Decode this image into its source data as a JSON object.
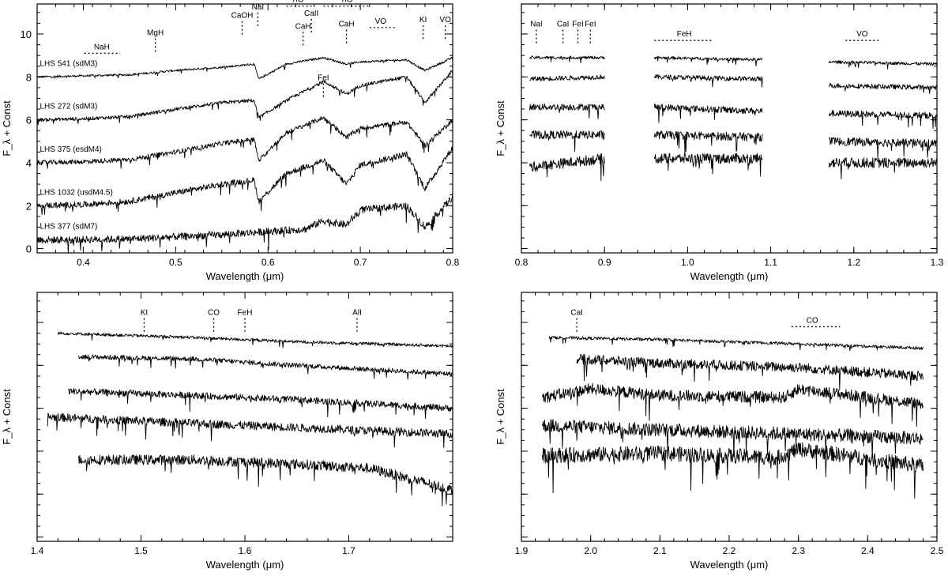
{
  "chart_data": [
    {
      "type": "line",
      "xlabel": "Wavelength (μm)",
      "ylabel": "F_λ + Const",
      "xlim": [
        0.35,
        0.8
      ],
      "ylim": [
        -0.2,
        11.4
      ],
      "xticks": [
        0.4,
        0.5,
        0.6,
        0.7,
        0.8
      ],
      "yticks": [
        0,
        2,
        4,
        6,
        8,
        10
      ],
      "series": [
        {
          "name": "LHS 541 (sdM3)",
          "offset": 8.0,
          "x": [
            0.35,
            0.4,
            0.45,
            0.5,
            0.55,
            0.585,
            0.59,
            0.62,
            0.66,
            0.685,
            0.7,
            0.75,
            0.77,
            0.8
          ],
          "y": [
            8.0,
            8.05,
            8.1,
            8.3,
            8.45,
            8.6,
            7.9,
            8.6,
            8.9,
            8.6,
            8.7,
            8.8,
            8.3,
            8.9
          ]
        },
        {
          "name": "LHS 272 (sdM3)",
          "offset": 6.0,
          "x": [
            0.35,
            0.4,
            0.45,
            0.5,
            0.55,
            0.585,
            0.59,
            0.62,
            0.66,
            0.685,
            0.7,
            0.75,
            0.77,
            0.8
          ],
          "y": [
            6.0,
            6.05,
            6.15,
            6.5,
            6.8,
            6.9,
            6.1,
            6.9,
            7.8,
            7.2,
            7.6,
            8.0,
            6.8,
            8.3
          ]
        },
        {
          "name": "LHS 375 (esdM4)",
          "offset": 4.0,
          "x": [
            0.35,
            0.4,
            0.45,
            0.5,
            0.55,
            0.585,
            0.59,
            0.62,
            0.66,
            0.685,
            0.7,
            0.75,
            0.77,
            0.8
          ],
          "y": [
            4.0,
            4.05,
            4.15,
            4.5,
            4.9,
            5.1,
            4.1,
            5.4,
            6.1,
            5.2,
            5.6,
            5.9,
            4.8,
            6.0
          ]
        },
        {
          "name": "LHS 1032 (usdM4.5)",
          "offset": 2.0,
          "x": [
            0.35,
            0.4,
            0.45,
            0.5,
            0.55,
            0.585,
            0.59,
            0.62,
            0.66,
            0.685,
            0.7,
            0.75,
            0.77,
            0.8
          ],
          "y": [
            2.0,
            2.05,
            2.2,
            2.6,
            3.0,
            3.2,
            2.2,
            3.5,
            4.1,
            3.0,
            3.9,
            4.4,
            2.8,
            4.7
          ]
        },
        {
          "name": "LHS 377 (sdM7)",
          "offset": 0.4,
          "x": [
            0.35,
            0.4,
            0.45,
            0.5,
            0.55,
            0.6,
            0.64,
            0.66,
            0.685,
            0.7,
            0.75,
            0.77,
            0.8
          ],
          "y": [
            0.4,
            0.42,
            0.45,
            0.55,
            0.65,
            0.8,
            0.9,
            1.3,
            1.1,
            1.8,
            2.0,
            1.0,
            2.4
          ]
        }
      ],
      "annotations": [
        {
          "text": "NaH",
          "x": 0.42,
          "level": 9.1,
          "x1": 0.401,
          "x2": 0.44
        },
        {
          "text": "MgH",
          "x": 0.478,
          "level": 9.8
        },
        {
          "text": "CaOH",
          "x": 0.572,
          "level": 10.6
        },
        {
          "text": "NaI",
          "x": 0.589,
          "level": 11.0
        },
        {
          "text": "TiO",
          "x": 0.632,
          "level": 11.3,
          "x1": 0.62,
          "x2": 0.65
        },
        {
          "text": "CaII",
          "x": 0.647,
          "level": 10.7
        },
        {
          "text": "CaH",
          "x": 0.638,
          "level": 10.1
        },
        {
          "text": "TiO",
          "x": 0.685,
          "level": 11.3,
          "x1": 0.66,
          "x2": 0.71
        },
        {
          "text": "CaH",
          "x": 0.685,
          "level": 10.2
        },
        {
          "text": "VO",
          "x": 0.722,
          "level": 10.3,
          "x1": 0.71,
          "x2": 0.74
        },
        {
          "text": "KI",
          "x": 0.768,
          "level": 10.4
        },
        {
          "text": "VO",
          "x": 0.792,
          "level": 10.4
        },
        {
          "text": "FeI",
          "x": 0.66,
          "level": 7.7
        }
      ]
    },
    {
      "type": "line",
      "xlabel": "Wavelength (μm)",
      "ylabel": "F_λ + Const",
      "xlim": [
        0.8,
        1.3
      ],
      "xticks": [
        0.8,
        0.9,
        1.0,
        1.1,
        1.2,
        1.3
      ],
      "segments": [
        [
          0.81,
          0.9
        ],
        [
          0.96,
          1.09
        ],
        [
          1.17,
          1.3
        ]
      ],
      "series": [
        {
          "name": "LHS 541 (sdM3)",
          "offset": 8.9,
          "x": [
            0.81,
            0.9,
            0.96,
            1.09,
            1.17,
            1.3
          ],
          "y": [
            8.9,
            8.9,
            8.9,
            8.8,
            8.7,
            8.6
          ]
        },
        {
          "name": "LHS 272 (sdM3)",
          "offset": 7.9,
          "x": [
            0.81,
            0.9,
            0.96,
            1.09,
            1.17,
            1.3
          ],
          "y": [
            7.9,
            8.0,
            8.0,
            7.9,
            7.6,
            7.5
          ]
        },
        {
          "name": "LHS 375 (esdM4)",
          "offset": 6.6,
          "x": [
            0.81,
            0.9,
            0.96,
            1.09,
            1.17,
            1.3
          ],
          "y": [
            6.6,
            6.6,
            6.6,
            6.4,
            6.3,
            6.2
          ]
        },
        {
          "name": "LHS 1032 (usdM4.5)",
          "offset": 5.3,
          "x": [
            0.81,
            0.9,
            0.96,
            1.09,
            1.17,
            1.3
          ],
          "y": [
            5.3,
            5.3,
            5.3,
            5.2,
            5.0,
            4.9
          ]
        },
        {
          "name": "LHS 377 (sdM7)",
          "offset": 4.2,
          "x": [
            0.81,
            0.9,
            0.96,
            1.09,
            1.17,
            1.3
          ],
          "y": [
            3.8,
            4.2,
            4.2,
            4.2,
            4.0,
            4.0
          ]
        }
      ],
      "annotations": [
        {
          "text": "NaI",
          "x": 0.818,
          "level": 10.2
        },
        {
          "text": "CaI",
          "x": 0.85,
          "level": 10.2
        },
        {
          "text": "FeI",
          "x": 0.868,
          "level": 10.2
        },
        {
          "text": "FeI",
          "x": 0.883,
          "level": 10.2
        },
        {
          "text": "FeH",
          "x": 0.996,
          "level": 9.7,
          "x1": 0.96,
          "x2": 1.03
        },
        {
          "text": "VO",
          "x": 1.21,
          "level": 9.7,
          "x1": 1.19,
          "x2": 1.23
        }
      ]
    },
    {
      "type": "line",
      "xlabel": "Wavelength (μm)",
      "ylabel": "F_λ + Const",
      "xlim": [
        1.4,
        1.8
      ],
      "xticks": [
        1.4,
        1.5,
        1.6,
        1.7
      ],
      "series": [
        {
          "name": "LHS 541 (sdM3)",
          "offset": 9.5,
          "x": [
            1.42,
            1.55,
            1.65,
            1.8
          ],
          "y": [
            9.5,
            9.3,
            9.1,
            8.9
          ]
        },
        {
          "name": "LHS 272 (sdM3)",
          "offset": 8.4,
          "x": [
            1.44,
            1.55,
            1.65,
            1.8
          ],
          "y": [
            8.4,
            8.3,
            8.0,
            7.6
          ]
        },
        {
          "name": "LHS 375 (esdM4)",
          "offset": 6.8,
          "x": [
            1.43,
            1.55,
            1.65,
            1.8
          ],
          "y": [
            6.8,
            6.6,
            6.4,
            6.0
          ]
        },
        {
          "name": "LHS 1032 (usdM4.5)",
          "offset": 5.6,
          "x": [
            1.41,
            1.55,
            1.65,
            1.8
          ],
          "y": [
            5.6,
            5.3,
            5.1,
            4.8
          ]
        },
        {
          "name": "LHS 377 (sdM7)",
          "offset": 3.6,
          "x": [
            1.44,
            1.55,
            1.65,
            1.72,
            1.8
          ],
          "y": [
            3.6,
            3.6,
            3.4,
            3.2,
            2.2
          ]
        }
      ],
      "annotations": [
        {
          "text": "KI",
          "x": 1.503,
          "level": 10.2
        },
        {
          "text": "CO",
          "x": 1.57,
          "level": 10.2
        },
        {
          "text": "FeH",
          "x": 1.6,
          "level": 10.2
        },
        {
          "text": "AlI",
          "x": 1.708,
          "level": 10.2
        }
      ]
    },
    {
      "type": "line",
      "xlabel": "Wavelength (μm)",
      "ylabel": "F_λ + Const",
      "xlim": [
        1.9,
        2.5
      ],
      "xticks": [
        1.9,
        2.0,
        2.1,
        2.2,
        2.3,
        2.4,
        2.5
      ],
      "series": [
        {
          "name": "LHS 541 (sdM3)",
          "offset": 9.3,
          "x": [
            1.94,
            2.1,
            2.3,
            2.48
          ],
          "y": [
            9.3,
            9.2,
            9.0,
            8.8
          ]
        },
        {
          "name": "LHS 272 (sdM3)",
          "offset": 8.3,
          "x": [
            1.98,
            2.1,
            2.3,
            2.48
          ],
          "y": [
            8.3,
            8.1,
            7.9,
            7.5
          ]
        },
        {
          "name": "LHS 375 (esdM4)",
          "offset": 6.5,
          "x": [
            1.93,
            2.0,
            2.1,
            2.28,
            2.3,
            2.48
          ],
          "y": [
            6.5,
            6.9,
            6.6,
            6.5,
            6.9,
            6.2
          ]
        },
        {
          "name": "LHS 1032 (usdM4.5)",
          "offset": 5.2,
          "x": [
            1.93,
            2.1,
            2.3,
            2.48
          ],
          "y": [
            5.2,
            5.0,
            4.8,
            4.6
          ]
        },
        {
          "name": "LHS 377 (sdM7)",
          "offset": 3.8,
          "x": [
            1.93,
            2.1,
            2.27,
            2.3,
            2.48
          ],
          "y": [
            3.8,
            3.9,
            3.7,
            4.1,
            3.3
          ]
        }
      ],
      "annotations": [
        {
          "text": "CaI",
          "x": 1.98,
          "level": 10.2
        },
        {
          "text": "CO",
          "x": 2.32,
          "level": 9.8,
          "x1": 2.29,
          "x2": 2.36
        }
      ]
    }
  ]
}
